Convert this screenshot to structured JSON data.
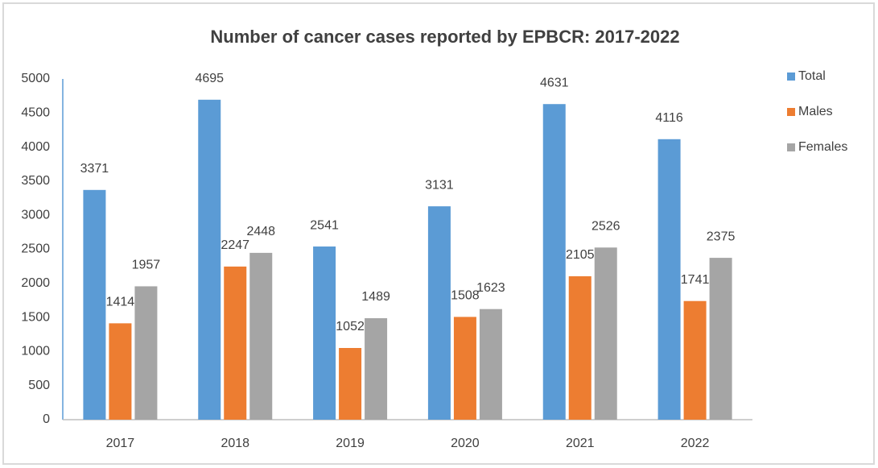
{
  "chart_data": {
    "type": "bar",
    "title": "Number of cancer cases reported by EPBCR: 2017-2022",
    "categories": [
      "2017",
      "2018",
      "2019",
      "2020",
      "2021",
      "2022"
    ],
    "series": [
      {
        "name": "Total",
        "color": "#5b9bd5",
        "values": [
          3371,
          4695,
          2541,
          3131,
          4631,
          4116
        ]
      },
      {
        "name": "Males",
        "color": "#ed7d31",
        "values": [
          1414,
          2247,
          1052,
          1508,
          2105,
          1741
        ]
      },
      {
        "name": "Females",
        "color": "#a5a5a5",
        "values": [
          1957,
          2448,
          1489,
          1623,
          2526,
          2375
        ]
      }
    ],
    "ylim": [
      0,
      5000
    ],
    "yticks": [
      0,
      500,
      1000,
      1500,
      2000,
      2500,
      3000,
      3500,
      4000,
      4500,
      5000
    ],
    "grid": false,
    "legend": "right"
  }
}
